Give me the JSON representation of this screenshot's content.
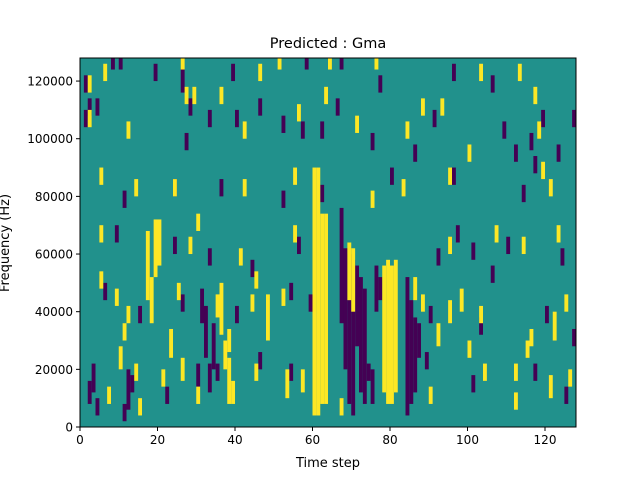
{
  "chart_data": {
    "type": "heatmap",
    "title": "Predicted : Gma",
    "xlabel": "Time step",
    "ylabel": "Frequency (Hz)",
    "xlim": [
      0,
      128
    ],
    "ylim": [
      0,
      128000
    ],
    "x_ticks": [
      0,
      20,
      40,
      60,
      80,
      100,
      120
    ],
    "y_ticks": [
      0,
      20000,
      40000,
      60000,
      80000,
      100000,
      120000
    ],
    "x_tick_labels": [
      "0",
      "20",
      "40",
      "60",
      "80",
      "100",
      "120"
    ],
    "y_tick_labels": [
      "0",
      "20000",
      "40000",
      "60000",
      "80000",
      "100000",
      "120000"
    ],
    "cell_width_steps": 1,
    "cell_height_hz": 4000,
    "colormap": {
      "low": "#440154",
      "background": "#21918c",
      "high": "#fde725"
    },
    "background_value": 0,
    "high_cells": [
      [
        60,
        4000,
        90000
      ],
      [
        61,
        4000,
        90000
      ],
      [
        62,
        8000,
        74000
      ],
      [
        63,
        8000,
        74000
      ],
      [
        69,
        44000,
        64000
      ],
      [
        70,
        40000,
        62000
      ],
      [
        78,
        12000,
        56000
      ],
      [
        79,
        8000,
        58000
      ],
      [
        80,
        8000,
        56000
      ],
      [
        81,
        12000,
        58000
      ],
      [
        19,
        52000,
        72000
      ],
      [
        20,
        56000,
        72000
      ],
      [
        17,
        44000,
        68000
      ],
      [
        18,
        36000,
        52000
      ],
      [
        37,
        20000,
        30000
      ],
      [
        38,
        8000,
        24000
      ],
      [
        39,
        8000,
        16000
      ],
      [
        36,
        32000,
        50000
      ],
      [
        35,
        38000,
        46000
      ],
      [
        48,
        30000,
        46000
      ],
      [
        57,
        12000,
        20000
      ],
      [
        23,
        24000,
        34000
      ],
      [
        26,
        16000,
        24000
      ],
      [
        10,
        20000,
        28000
      ],
      [
        53,
        10000,
        20000
      ],
      [
        98,
        40000,
        48000
      ],
      [
        122,
        30000,
        40000
      ],
      [
        126,
        14000,
        20000
      ],
      [
        95,
        36000,
        44000
      ],
      [
        121,
        10000,
        18000
      ],
      [
        112,
        6000,
        12000
      ],
      [
        14,
        16000,
        22000
      ],
      [
        92,
        28000,
        36000
      ],
      [
        104,
        16000,
        22000
      ],
      [
        115,
        24000,
        30000
      ],
      [
        52,
        42000,
        48000
      ],
      [
        44,
        40000,
        46000
      ],
      [
        11,
        30000,
        36000
      ],
      [
        28,
        60000,
        66000
      ],
      [
        41,
        56000,
        62000
      ],
      [
        9,
        42000,
        48000
      ],
      [
        83,
        80000,
        86000
      ],
      [
        86,
        44000,
        52000
      ],
      [
        119,
        86000,
        92000
      ],
      [
        103,
        120000,
        126000
      ],
      [
        6,
        120000,
        126000
      ],
      [
        26,
        124000,
        128000
      ],
      [
        51,
        124000,
        128000
      ],
      [
        64,
        124000,
        128000
      ],
      [
        76,
        124000,
        128000
      ],
      [
        113,
        120000,
        126000
      ],
      [
        2,
        104000,
        110000
      ],
      [
        12,
        100000,
        106000
      ],
      [
        42,
        100000,
        106000
      ],
      [
        56,
        106000,
        112000
      ],
      [
        71,
        102000,
        108000
      ],
      [
        84,
        100000,
        106000
      ],
      [
        118,
        100000,
        106000
      ],
      [
        27,
        112000,
        118000
      ],
      [
        63,
        112000,
        118000
      ],
      [
        88,
        108000,
        114000
      ],
      [
        5,
        84000,
        90000
      ],
      [
        14,
        80000,
        86000
      ],
      [
        24,
        80000,
        86000
      ],
      [
        42,
        80000,
        86000
      ],
      [
        55,
        84000,
        90000
      ],
      [
        75,
        76000,
        82000
      ],
      [
        95,
        84000,
        90000
      ],
      [
        121,
        80000,
        86000
      ],
      [
        5,
        64000,
        70000
      ],
      [
        30,
        68000,
        74000
      ],
      [
        55,
        64000,
        70000
      ],
      [
        95,
        60000,
        66000
      ],
      [
        107,
        64000,
        70000
      ],
      [
        114,
        60000,
        66000
      ],
      [
        123,
        64000,
        70000
      ],
      [
        5,
        48000,
        54000
      ],
      [
        45,
        48000,
        54000
      ],
      [
        25,
        44000,
        50000
      ],
      [
        88,
        40000,
        46000
      ],
      [
        103,
        36000,
        42000
      ],
      [
        116,
        28000,
        34000
      ],
      [
        125,
        40000,
        46000
      ],
      [
        7,
        8000,
        14000
      ],
      [
        15,
        4000,
        10000
      ],
      [
        30,
        8000,
        14000
      ],
      [
        45,
        16000,
        22000
      ],
      [
        67,
        4000,
        10000
      ],
      [
        90,
        8000,
        14000
      ],
      [
        100,
        24000,
        30000
      ],
      [
        112,
        16000,
        22000
      ],
      [
        29,
        112000,
        118000
      ],
      [
        36,
        112000,
        118000
      ],
      [
        46,
        120000,
        126000
      ],
      [
        93,
        108000,
        114000
      ],
      [
        117,
        112000,
        118000
      ],
      [
        38,
        26000,
        34000
      ],
      [
        21,
        14000,
        20000
      ],
      [
        12,
        36000,
        42000
      ],
      [
        100,
        92000,
        98000
      ],
      [
        2,
        116000,
        122000
      ]
    ],
    "low_cells": [
      [
        69,
        8000,
        60000
      ],
      [
        70,
        4000,
        58000
      ],
      [
        71,
        28000,
        56000
      ],
      [
        72,
        12000,
        52000
      ],
      [
        68,
        20000,
        62000
      ],
      [
        67,
        36000,
        76000
      ],
      [
        73,
        8000,
        48000
      ],
      [
        84,
        4000,
        52000
      ],
      [
        85,
        8000,
        44000
      ],
      [
        86,
        12000,
        38000
      ],
      [
        87,
        24000,
        36000
      ],
      [
        76,
        40000,
        56000
      ],
      [
        77,
        44000,
        52000
      ],
      [
        74,
        16000,
        22000
      ],
      [
        75,
        8000,
        20000
      ],
      [
        33,
        12000,
        22000
      ],
      [
        34,
        20000,
        36000
      ],
      [
        32,
        24000,
        42000
      ],
      [
        31,
        36000,
        48000
      ],
      [
        30,
        14000,
        22000
      ],
      [
        11,
        2000,
        8000
      ],
      [
        12,
        6000,
        20000
      ],
      [
        2,
        8000,
        16000
      ],
      [
        3,
        12000,
        22000
      ],
      [
        4,
        4000,
        10000
      ],
      [
        1,
        104000,
        110000
      ],
      [
        2,
        108000,
        114000
      ],
      [
        1,
        116000,
        122000
      ],
      [
        8,
        124000,
        128000
      ],
      [
        10,
        124000,
        128000
      ],
      [
        19,
        120000,
        126000
      ],
      [
        26,
        116000,
        124000
      ],
      [
        39,
        120000,
        126000
      ],
      [
        58,
        124000,
        128000
      ],
      [
        67,
        124000,
        128000
      ],
      [
        77,
        116000,
        122000
      ],
      [
        96,
        120000,
        126000
      ],
      [
        106,
        116000,
        122000
      ],
      [
        119,
        104000,
        110000
      ],
      [
        28,
        108000,
        114000
      ],
      [
        40,
        104000,
        110000
      ],
      [
        52,
        102000,
        108000
      ],
      [
        62,
        100000,
        106000
      ],
      [
        75,
        96000,
        102000
      ],
      [
        86,
        92000,
        98000
      ],
      [
        112,
        92000,
        98000
      ],
      [
        117,
        88000,
        94000
      ],
      [
        127,
        104000,
        110000
      ],
      [
        4,
        108000,
        114000
      ],
      [
        11,
        76000,
        82000
      ],
      [
        24,
        80000,
        86000
      ],
      [
        36,
        80000,
        86000
      ],
      [
        52,
        76000,
        82000
      ],
      [
        62,
        78000,
        84000
      ],
      [
        80,
        84000,
        90000
      ],
      [
        96,
        84000,
        90000
      ],
      [
        114,
        78000,
        84000
      ],
      [
        9,
        64000,
        70000
      ],
      [
        24,
        60000,
        66000
      ],
      [
        33,
        56000,
        62000
      ],
      [
        44,
        52000,
        58000
      ],
      [
        56,
        60000,
        66000
      ],
      [
        92,
        56000,
        62000
      ],
      [
        110,
        60000,
        66000
      ],
      [
        124,
        56000,
        62000
      ],
      [
        6,
        44000,
        50000
      ],
      [
        15,
        36000,
        42000
      ],
      [
        26,
        40000,
        46000
      ],
      [
        40,
        36000,
        42000
      ],
      [
        54,
        44000,
        50000
      ],
      [
        59,
        40000,
        46000
      ],
      [
        90,
        36000,
        42000
      ],
      [
        103,
        32000,
        38000
      ],
      [
        120,
        36000,
        42000
      ],
      [
        127,
        28000,
        34000
      ],
      [
        13,
        12000,
        18000
      ],
      [
        22,
        8000,
        14000
      ],
      [
        35,
        16000,
        22000
      ],
      [
        46,
        20000,
        26000
      ],
      [
        54,
        16000,
        22000
      ],
      [
        89,
        20000,
        26000
      ],
      [
        101,
        12000,
        18000
      ],
      [
        117,
        16000,
        22000
      ],
      [
        125,
        8000,
        14000
      ],
      [
        27,
        96000,
        102000
      ],
      [
        33,
        104000,
        110000
      ],
      [
        46,
        108000,
        114000
      ],
      [
        57,
        100000,
        106000
      ],
      [
        66,
        108000,
        114000
      ],
      [
        91,
        104000,
        110000
      ],
      [
        109,
        100000,
        106000
      ],
      [
        116,
        96000,
        102000
      ],
      [
        123,
        92000,
        98000
      ],
      [
        97,
        64000,
        70000
      ],
      [
        101,
        58000,
        64000
      ],
      [
        106,
        50000,
        56000
      ]
    ]
  }
}
